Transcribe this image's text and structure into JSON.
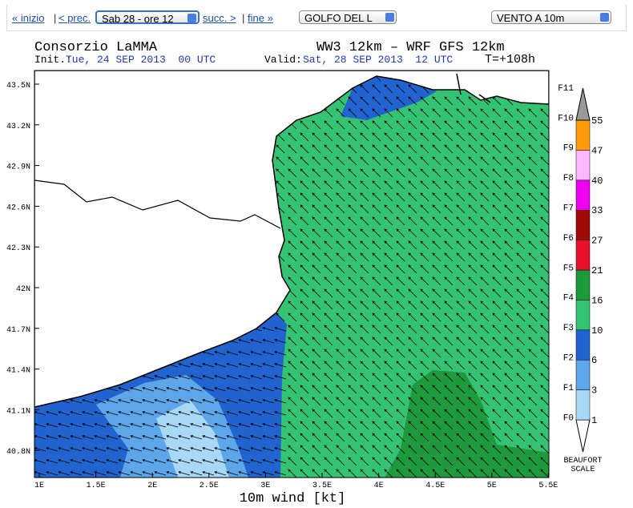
{
  "nav": {
    "links": [
      "« inizio",
      "< prec.",
      "succ. >",
      "fine »"
    ],
    "separator": "|",
    "time_select": "Sab 28 - ore 12",
    "region_select": "GOLFO DEL L",
    "field_select": "VENTO A 10m"
  },
  "map": {
    "title_left": "Consorzio LaMMA",
    "title_right": "WW3 12km – WRF GFS 12km",
    "init_label": "Init.:",
    "init_value": "Tue, 24 SEP 2013  00 UTC",
    "valid_label": "Valid:",
    "valid_value": "Sat, 28 SEP 2013  12 UTC",
    "lead_time": "T=+108h",
    "x_axis_label": "10m wind [kt]",
    "xticks": [
      "1E",
      "1.5E",
      "2E",
      "2.5E",
      "3E",
      "3.5E",
      "4E",
      "4.5E",
      "5E",
      "5.5E"
    ],
    "yticks": [
      "43.5N",
      "43.2N",
      "42.9N",
      "42.6N",
      "42.3N",
      "42N",
      "41.7N",
      "41.4N",
      "41.1N",
      "40.8N"
    ]
  },
  "colorbar": {
    "levels": [
      1,
      3,
      6,
      10,
      16,
      21,
      27,
      33,
      40,
      47,
      55
    ],
    "colors": [
      "#a8d8f5",
      "#5ea6ea",
      "#2163cf",
      "#33c373",
      "#1c9a3c",
      "#e8102a",
      "#a20a0a",
      "#f000f0",
      "#ffb8ff",
      "#ff9a0a"
    ],
    "beaufort": [
      "F0",
      "F1",
      "F2",
      "F3",
      "F4",
      "F5",
      "F6",
      "F7",
      "F8",
      "F9",
      "F10",
      "F11"
    ],
    "scale_title": [
      "BEAUFORT",
      "SCALE"
    ]
  }
}
